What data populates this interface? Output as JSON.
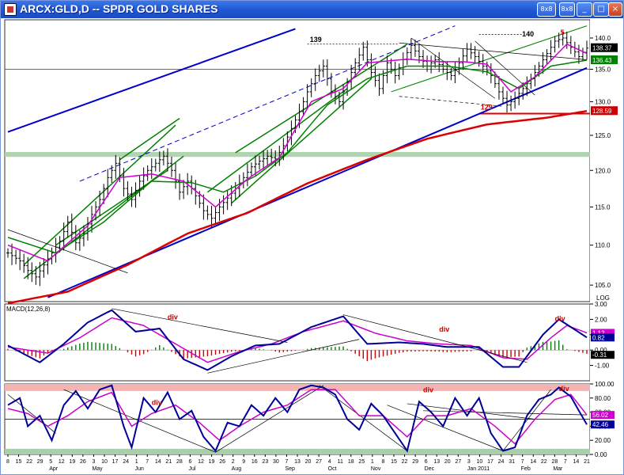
{
  "window": {
    "title": "ARCX:GLD,D -- SPDR GOLD SHARES",
    "buttons": {
      "size": "8x8",
      "pin": "8x8",
      "minimize": "_",
      "maximize": "□",
      "close": "×"
    }
  },
  "colors": {
    "price_bars": "#000000",
    "sma_fast": "#cc00cc",
    "sma_mid": "#008000",
    "sma_long": "#dd0000",
    "trend_blue": "#0000cc",
    "channel_green": "#008000",
    "histogram_pos": "#008000",
    "histogram_neg": "#cc0000",
    "macd_line": "#000099",
    "signal_line": "#cc00cc",
    "resistance_band": "#a8d0a8",
    "overbought_band": "#f4b4b4",
    "oversold_band": "#a8d0a8"
  },
  "chart_data": [
    {
      "type": "candlestick",
      "panel": "price",
      "symbol": "ARCX:GLD,D",
      "log_scale": true,
      "scale_label": "LOG",
      "y_ticks": [
        "140.0",
        "135.0",
        "130.0",
        "125.0",
        "120.0",
        "115.0",
        "110.0",
        "105.0"
      ],
      "ylim": [
        103,
        143
      ],
      "last_labels": [
        {
          "text": "138.37",
          "value": 138.37,
          "color": "#000000"
        },
        {
          "text": "136.43",
          "value": 136.43,
          "color": "#008000"
        },
        {
          "text": "128.59",
          "value": 128.59,
          "color": "#cc0000"
        }
      ],
      "annotations": [
        {
          "text": "139",
          "color": "#000000"
        },
        {
          "text": "140",
          "color": "#000000"
        },
        {
          "text": "5",
          "color": "#cc0000"
        },
        {
          "text": "129",
          "color": "#cc0000"
        }
      ],
      "anchors": [
        [
          0,
          109
        ],
        [
          3,
          108
        ],
        [
          5,
          106.8
        ],
        [
          7,
          106
        ],
        [
          9,
          107.5
        ],
        [
          11,
          109
        ],
        [
          13,
          110.5
        ],
        [
          15,
          113
        ],
        [
          17,
          110.3
        ],
        [
          19,
          111.5
        ],
        [
          21,
          114
        ],
        [
          23,
          116
        ],
        [
          25,
          119
        ],
        [
          27,
          121
        ],
        [
          29,
          117.5
        ],
        [
          31,
          116
        ],
        [
          33,
          118.5
        ],
        [
          35,
          120
        ],
        [
          37,
          121
        ],
        [
          39,
          122
        ],
        [
          41,
          120
        ],
        [
          43,
          117
        ],
        [
          45,
          118.5
        ],
        [
          47,
          116.5
        ],
        [
          49,
          114.5
        ],
        [
          51,
          113.5
        ],
        [
          53,
          115
        ],
        [
          55,
          116.2
        ],
        [
          57,
          117.5
        ],
        [
          59,
          119
        ],
        [
          61,
          120.5
        ],
        [
          63,
          121.3
        ],
        [
          65,
          122
        ],
        [
          67,
          121.6
        ],
        [
          69,
          123.5
        ],
        [
          71,
          126
        ],
        [
          73,
          128.5
        ],
        [
          75,
          131.5
        ],
        [
          77,
          134
        ],
        [
          79,
          135.5
        ],
        [
          81,
          131.5
        ],
        [
          83,
          130
        ],
        [
          85,
          133
        ],
        [
          87,
          136
        ],
        [
          89,
          138.5
        ],
        [
          91,
          134.5
        ],
        [
          93,
          132
        ],
        [
          95,
          136
        ],
        [
          97,
          134
        ],
        [
          99,
          136.5
        ],
        [
          101,
          138.8
        ],
        [
          103,
          137
        ],
        [
          105,
          135.5
        ],
        [
          107,
          136.5
        ],
        [
          109,
          135
        ],
        [
          111,
          134
        ],
        [
          113,
          136
        ],
        [
          115,
          138.2
        ],
        [
          117,
          137
        ],
        [
          119,
          135.5
        ],
        [
          121,
          134
        ],
        [
          123,
          131.5
        ],
        [
          125,
          129.5
        ],
        [
          127,
          130.5
        ],
        [
          129,
          132
        ],
        [
          131,
          133.5
        ],
        [
          133,
          135.5
        ],
        [
          135,
          137.5
        ],
        [
          137,
          139.5
        ],
        [
          139,
          140
        ],
        [
          141,
          138.5
        ],
        [
          143,
          137
        ],
        [
          145,
          138.37
        ]
      ],
      "sma_fast_anchors": [
        [
          0,
          110
        ],
        [
          10,
          108
        ],
        [
          20,
          112.5
        ],
        [
          28,
          119
        ],
        [
          36,
          119.5
        ],
        [
          44,
          118.5
        ],
        [
          52,
          115
        ],
        [
          60,
          118.8
        ],
        [
          68,
          121.8
        ],
        [
          76,
          130
        ],
        [
          84,
          132
        ],
        [
          90,
          136
        ],
        [
          100,
          136.6
        ],
        [
          108,
          136.2
        ],
        [
          114,
          136.2
        ],
        [
          120,
          135.8
        ],
        [
          126,
          131.5
        ],
        [
          132,
          133.8
        ],
        [
          140,
          139
        ],
        [
          145,
          137.5
        ]
      ],
      "sma_mid_anchors": [
        [
          0,
          111
        ],
        [
          12,
          109
        ],
        [
          24,
          113
        ],
        [
          36,
          118.5
        ],
        [
          46,
          118.3
        ],
        [
          54,
          117
        ],
        [
          62,
          119.2
        ],
        [
          70,
          122.5
        ],
        [
          80,
          129.5
        ],
        [
          90,
          133.5
        ],
        [
          100,
          135.5
        ],
        [
          110,
          135.5
        ],
        [
          120,
          134.6
        ],
        [
          128,
          132
        ],
        [
          136,
          135.5
        ],
        [
          145,
          136.43
        ]
      ],
      "sma_long_anchors": [
        [
          0,
          102.8
        ],
        [
          15,
          104.2
        ],
        [
          30,
          107.5
        ],
        [
          45,
          111.5
        ],
        [
          60,
          114.2
        ],
        [
          75,
          118.2
        ],
        [
          90,
          121.5
        ],
        [
          105,
          124.5
        ],
        [
          120,
          126.6
        ],
        [
          135,
          127.6
        ],
        [
          145,
          128.59
        ]
      ],
      "x_labels": [
        "8",
        "15",
        "22",
        "29",
        "5",
        "12",
        "19",
        "26",
        "3",
        "10",
        "17",
        "24",
        "1",
        "7",
        "14",
        "21",
        "28",
        "6",
        "12",
        "19",
        "26",
        "2",
        "9",
        "16",
        "23",
        "30",
        "7",
        "13",
        "20",
        "27",
        "4",
        "11",
        "18",
        "25",
        "1",
        "8",
        "15",
        "22",
        "29",
        "6",
        "13",
        "20",
        "27",
        "3",
        "10",
        "17",
        "24",
        "31",
        "7",
        "14",
        "22",
        "28",
        "7",
        "14",
        "21"
      ],
      "month_labels": [
        "Apr",
        "May",
        "Jun",
        "Jul",
        "Aug",
        "Sep",
        "Oct",
        "Nov",
        "Dec",
        "Jan 2011",
        "Feb",
        "Mar"
      ]
    },
    {
      "type": "line",
      "panel": "macd",
      "label": "MACD(12,26,8)",
      "y_ticks": [
        "3.00",
        "2.00",
        "1.00",
        "0.00",
        "-1.00"
      ],
      "ylim": [
        -2.0,
        3.0
      ],
      "last_labels": [
        {
          "text": "1.12",
          "value": 1.12,
          "color": "#cc00cc"
        },
        {
          "text": "0.82",
          "value": 0.82,
          "color": "#000099"
        },
        {
          "text": "-0.31",
          "value": -0.31,
          "color": "#000000"
        }
      ],
      "annotations": [
        {
          "text": "div"
        },
        {
          "text": "div"
        },
        {
          "text": "div"
        }
      ],
      "macd_anchors": [
        [
          0,
          0.3
        ],
        [
          8,
          -0.8
        ],
        [
          14,
          0.4
        ],
        [
          20,
          1.8
        ],
        [
          26,
          2.6
        ],
        [
          32,
          1.2
        ],
        [
          38,
          1.4
        ],
        [
          44,
          -0.6
        ],
        [
          50,
          -1.3
        ],
        [
          56,
          -0.4
        ],
        [
          62,
          0.3
        ],
        [
          68,
          0.4
        ],
        [
          76,
          1.5
        ],
        [
          84,
          2.2
        ],
        [
          90,
          0.4
        ],
        [
          98,
          0.5
        ],
        [
          104,
          0.4
        ],
        [
          110,
          0.2
        ],
        [
          118,
          0.2
        ],
        [
          124,
          -1.1
        ],
        [
          128,
          -1.1
        ],
        [
          134,
          1.0
        ],
        [
          138,
          2.0
        ],
        [
          141,
          1.5
        ],
        [
          145,
          0.82
        ]
      ],
      "signal_anchors": [
        [
          0,
          0.2
        ],
        [
          10,
          -0.2
        ],
        [
          18,
          0.8
        ],
        [
          26,
          2.1
        ],
        [
          34,
          1.6
        ],
        [
          42,
          0.4
        ],
        [
          50,
          -0.8
        ],
        [
          58,
          -0.1
        ],
        [
          66,
          0.4
        ],
        [
          74,
          1.2
        ],
        [
          84,
          1.9
        ],
        [
          92,
          1.1
        ],
        [
          100,
          0.6
        ],
        [
          108,
          0.4
        ],
        [
          116,
          0.3
        ],
        [
          124,
          -0.5
        ],
        [
          130,
          -0.6
        ],
        [
          136,
          0.8
        ],
        [
          140,
          1.6
        ],
        [
          145,
          1.12
        ]
      ]
    },
    {
      "type": "line",
      "panel": "stochastic",
      "y_ticks": [
        "100.00",
        "80.00",
        "60.00",
        "40.00",
        "20.00",
        "0.00"
      ],
      "ylim": [
        0,
        100
      ],
      "last_labels": [
        {
          "text": "56.02",
          "value": 56.02,
          "color": "#cc00cc"
        },
        {
          "text": "42.46",
          "value": 42.46,
          "color": "#000099"
        }
      ],
      "annotations": [
        {
          "text": "div"
        },
        {
          "text": "div"
        },
        {
          "text": "div"
        }
      ],
      "k_anchors": [
        [
          0,
          70
        ],
        [
          3,
          80
        ],
        [
          5,
          40
        ],
        [
          8,
          55
        ],
        [
          11,
          20
        ],
        [
          14,
          70
        ],
        [
          17,
          90
        ],
        [
          20,
          65
        ],
        [
          23,
          92
        ],
        [
          26,
          98
        ],
        [
          29,
          40
        ],
        [
          31,
          10
        ],
        [
          34,
          80
        ],
        [
          37,
          60
        ],
        [
          40,
          88
        ],
        [
          43,
          50
        ],
        [
          46,
          62
        ],
        [
          49,
          25
        ],
        [
          52,
          5
        ],
        [
          55,
          45
        ],
        [
          58,
          40
        ],
        [
          61,
          70
        ],
        [
          64,
          55
        ],
        [
          67,
          80
        ],
        [
          70,
          60
        ],
        [
          73,
          92
        ],
        [
          76,
          98
        ],
        [
          79,
          95
        ],
        [
          82,
          85
        ],
        [
          85,
          50
        ],
        [
          88,
          35
        ],
        [
          91,
          72
        ],
        [
          94,
          55
        ],
        [
          97,
          30
        ],
        [
          100,
          5
        ],
        [
          103,
          75
        ],
        [
          106,
          60
        ],
        [
          109,
          40
        ],
        [
          112,
          80
        ],
        [
          115,
          55
        ],
        [
          118,
          80
        ],
        [
          121,
          30
        ],
        [
          124,
          5
        ],
        [
          127,
          10
        ],
        [
          130,
          55
        ],
        [
          133,
          78
        ],
        [
          136,
          85
        ],
        [
          138,
          95
        ],
        [
          141,
          82
        ],
        [
          143,
          62
        ],
        [
          145,
          42.46
        ]
      ],
      "d_anchors": [
        [
          0,
          65
        ],
        [
          5,
          58
        ],
        [
          10,
          40
        ],
        [
          15,
          55
        ],
        [
          20,
          75
        ],
        [
          26,
          88
        ],
        [
          31,
          40
        ],
        [
          36,
          58
        ],
        [
          42,
          70
        ],
        [
          48,
          45
        ],
        [
          53,
          20
        ],
        [
          58,
          40
        ],
        [
          64,
          60
        ],
        [
          70,
          70
        ],
        [
          76,
          92
        ],
        [
          82,
          92
        ],
        [
          88,
          55
        ],
        [
          94,
          55
        ],
        [
          100,
          25
        ],
        [
          105,
          55
        ],
        [
          110,
          55
        ],
        [
          116,
          65
        ],
        [
          122,
          40
        ],
        [
          127,
          15
        ],
        [
          132,
          50
        ],
        [
          137,
          78
        ],
        [
          141,
          85
        ],
        [
          145,
          56.02
        ]
      ]
    }
  ]
}
